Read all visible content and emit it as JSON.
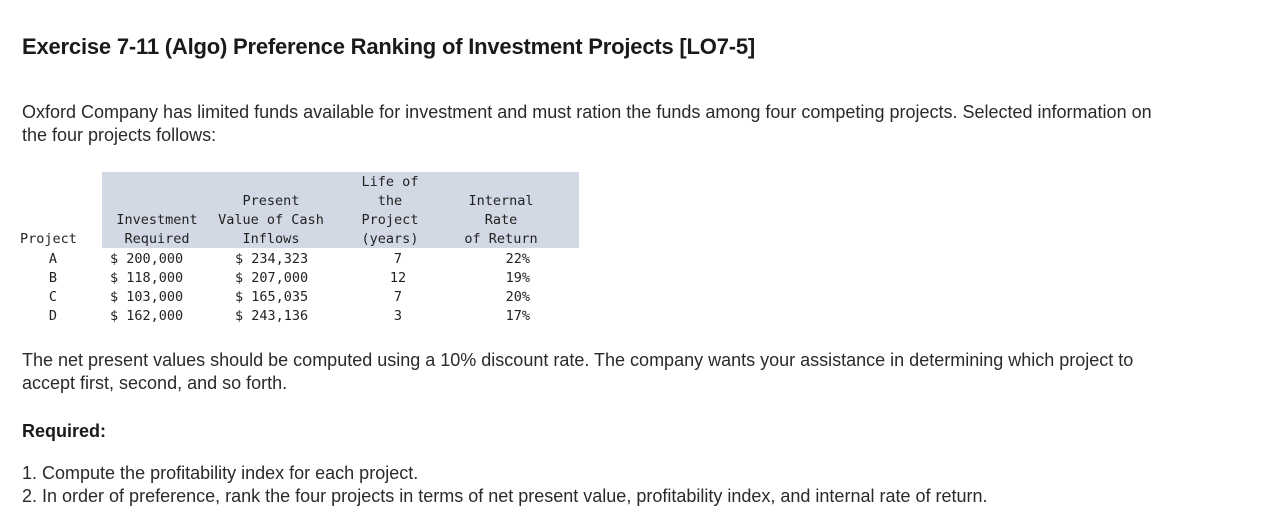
{
  "title": "Exercise 7-11 (Algo) Preference Ranking of Investment Projects [LO7-5]",
  "intro": "Oxford Company has limited funds available for investment and must ration the funds among four competing projects. Selected information on the four projects follows:",
  "table": {
    "headers": {
      "project": "Project",
      "investment": [
        "Investment",
        "Required"
      ],
      "pv": [
        "Present",
        "Value of Cash",
        "Inflows"
      ],
      "life": [
        "Life of",
        "the",
        "Project",
        "(years)"
      ],
      "irr": [
        "Internal",
        "Rate",
        "of Return"
      ]
    },
    "rows": [
      {
        "project": "A",
        "investment": "$ 200,000",
        "pv": "$ 234,323",
        "life": "7",
        "irr": "22%"
      },
      {
        "project": "B",
        "investment": "$ 118,000",
        "pv": "$ 207,000",
        "life": "12",
        "irr": "19%"
      },
      {
        "project": "C",
        "investment": "$ 103,000",
        "pv": "$ 165,035",
        "life": "7",
        "irr": "20%"
      },
      {
        "project": "D",
        "investment": "$ 162,000",
        "pv": "$ 243,136",
        "life": "3",
        "irr": "17%"
      }
    ]
  },
  "note": "The net present values should be computed using a 10% discount rate. The company wants your assistance in determining which project to accept first, second, and so forth.",
  "required_label": "Required:",
  "required_items": [
    "1. Compute the profitability index for each project.",
    "2. In order of preference, rank the four projects in terms of net present value, profitability index, and internal rate of return."
  ]
}
